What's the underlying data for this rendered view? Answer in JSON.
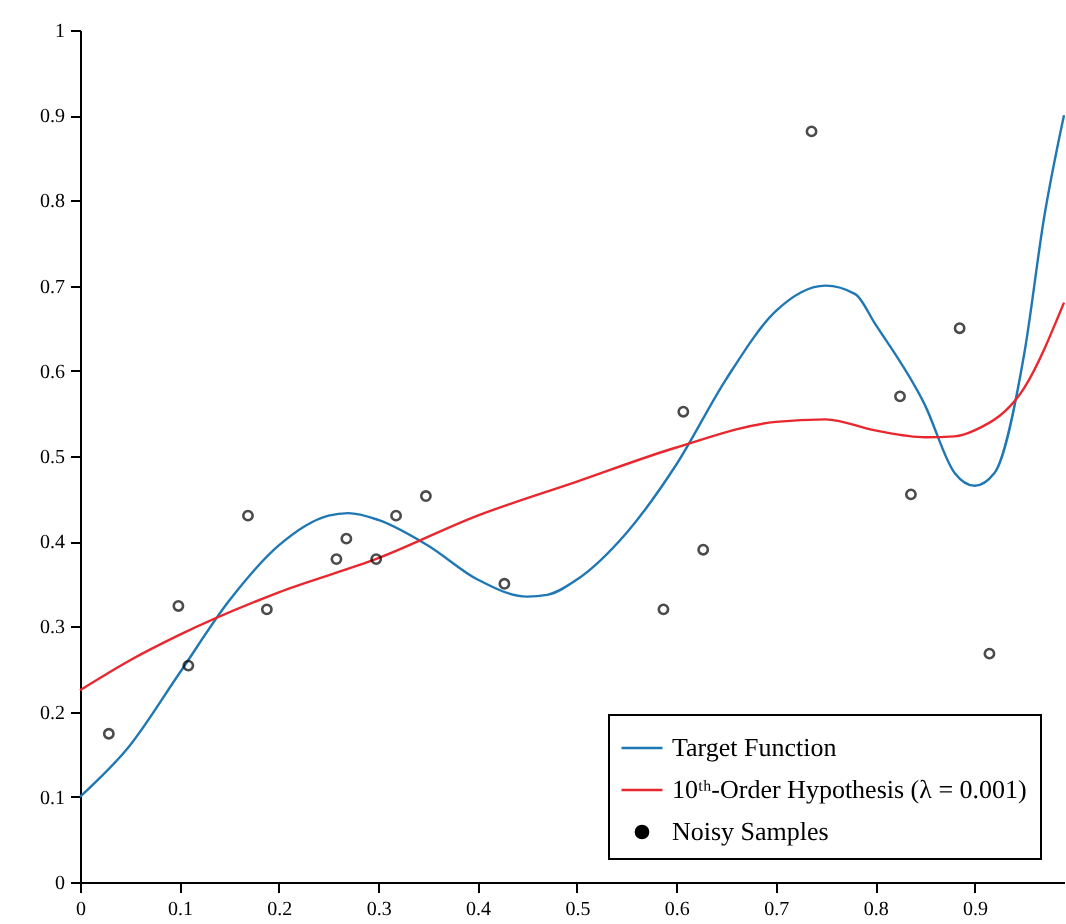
{
  "chart_data": {
    "type": "line",
    "xlim": [
      0,
      0.99
    ],
    "ylim": [
      0,
      1
    ],
    "xticks": [
      0,
      0.1,
      0.2,
      0.3,
      0.4,
      0.5,
      0.6,
      0.7,
      0.8,
      0.9
    ],
    "yticks": [
      0,
      0.1,
      0.2,
      0.3,
      0.4,
      0.5,
      0.6,
      0.7,
      0.8,
      0.9,
      1
    ],
    "legend": "bottom right",
    "series": [
      {
        "name": "Target Function",
        "color": "#1f77b4",
        "x": [
          0,
          0.05,
          0.1,
          0.15,
          0.2,
          0.25,
          0.27,
          0.3,
          0.35,
          0.4,
          0.45,
          0.47,
          0.5,
          0.55,
          0.6,
          0.65,
          0.7,
          0.75,
          0.78,
          0.8,
          0.85,
          0.88,
          0.9,
          0.92,
          0.95,
          0.97,
          0.99
        ],
        "values": [
          0.1,
          0.16,
          0.245,
          0.33,
          0.395,
          0.43,
          0.433,
          0.425,
          0.395,
          0.355,
          0.335,
          0.337,
          0.355,
          0.41,
          0.49,
          0.59,
          0.67,
          0.7,
          0.69,
          0.655,
          0.56,
          0.48,
          0.465,
          0.48,
          0.62,
          0.78,
          0.9
        ]
      },
      {
        "name": "10ᵗʰ-Order Hypothesis (λ = 0.001)",
        "color": "#e8282e",
        "x": [
          0,
          0.05,
          0.1,
          0.2,
          0.3,
          0.4,
          0.5,
          0.6,
          0.7,
          0.75,
          0.8,
          0.85,
          0.88,
          0.9,
          0.95,
          0.99
        ],
        "values": [
          0.225,
          0.26,
          0.29,
          0.34,
          0.38,
          0.43,
          0.47,
          0.51,
          0.54,
          0.543,
          0.53,
          0.522,
          0.523,
          0.53,
          0.58,
          0.68
        ]
      },
      {
        "name": "Noisy Samples",
        "type": "scatter",
        "color": "#000000",
        "marker": "circle",
        "x": [
          0.029,
          0.099,
          0.109,
          0.169,
          0.188,
          0.258,
          0.268,
          0.298,
          0.318,
          0.348,
          0.427,
          0.587,
          0.607,
          0.627,
          0.736,
          0.825,
          0.836,
          0.885,
          0.915
        ],
        "values": [
          0.174,
          0.324,
          0.254,
          0.43,
          0.32,
          0.379,
          0.403,
          0.379,
          0.43,
          0.453,
          0.35,
          0.32,
          0.552,
          0.39,
          0.881,
          0.57,
          0.455,
          0.65,
          0.268
        ]
      }
    ]
  }
}
